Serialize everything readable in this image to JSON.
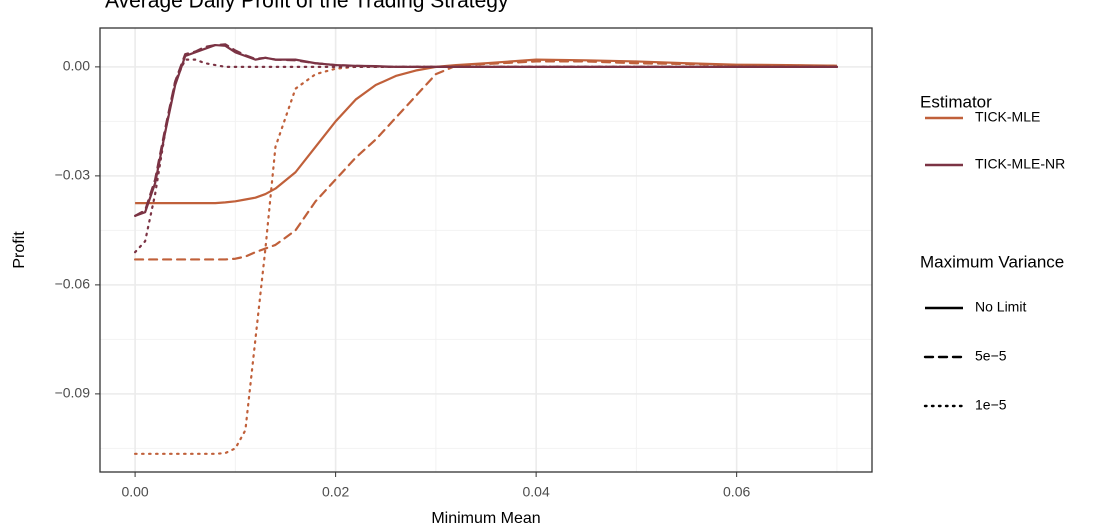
{
  "chart_data": {
    "type": "line",
    "title": "Average Daily Profit of the Trading Strategy",
    "x_label": "Minimum Mean",
    "y_label": "Profit",
    "xlim": [
      -0.0035,
      0.0735
    ],
    "ylim": [
      -0.1115,
      0.0107
    ],
    "xticks": [
      {
        "value": 0,
        "label": "0.00"
      },
      {
        "value": 0.02,
        "label": "0.02"
      },
      {
        "value": 0.04,
        "label": "0.04"
      },
      {
        "value": 0.06,
        "label": "0.06"
      }
    ],
    "yticks": [
      {
        "value": 0,
        "label": "0.00"
      },
      {
        "value": -0.03,
        "label": "−0.03"
      },
      {
        "value": -0.06,
        "label": "−0.06"
      },
      {
        "value": -0.09,
        "label": "−0.09"
      }
    ],
    "xminor": [
      0.01,
      0.03,
      0.05,
      0.07
    ],
    "yminor": [
      -0.015,
      -0.045,
      -0.075,
      -0.105
    ],
    "grid": true,
    "legend_position": "right",
    "color_legend_title": "Estimator",
    "estimators": [
      {
        "name": "TICK-MLE",
        "color": "#c0603a"
      },
      {
        "name": "TICK-MLE-NR",
        "color": "#7b3344"
      }
    ],
    "linetype_legend_title": "Maximum Variance",
    "variances": [
      {
        "name": "No Limit",
        "dash": "solid"
      },
      {
        "name": "5e−5",
        "dash": "dashed"
      },
      {
        "name": "1e−5",
        "dash": "dotted"
      }
    ],
    "x": [
      0,
      0.001,
      0.002,
      0.003,
      0.004,
      0.005,
      0.006,
      0.007,
      0.008,
      0.009,
      0.01,
      0.011,
      0.012,
      0.013,
      0.014,
      0.016,
      0.018,
      0.02,
      0.022,
      0.024,
      0.026,
      0.028,
      0.03,
      0.032,
      0.035,
      0.04,
      0.045,
      0.05,
      0.055,
      0.06,
      0.065,
      0.07
    ],
    "series": [
      {
        "name": "TICK-MLE",
        "estimator": 0,
        "variance": 0,
        "values": [
          -0.0375,
          -0.0375,
          -0.0375,
          -0.0375,
          -0.0375,
          -0.0375,
          -0.0375,
          -0.0375,
          -0.0375,
          -0.0373,
          -0.037,
          -0.0365,
          -0.036,
          -0.035,
          -0.0335,
          -0.029,
          -0.022,
          -0.015,
          -0.009,
          -0.005,
          -0.0025,
          -0.001,
          0,
          0.0005,
          0.001,
          0.002,
          0.0018,
          0.0015,
          0.001,
          0.0006,
          0.0005,
          0.0003
        ]
      },
      {
        "name": "TICK-MLE",
        "estimator": 0,
        "variance": 1,
        "values": [
          -0.053,
          -0.053,
          -0.053,
          -0.053,
          -0.053,
          -0.053,
          -0.053,
          -0.053,
          -0.053,
          -0.053,
          -0.0528,
          -0.0522,
          -0.051,
          -0.05,
          -0.049,
          -0.045,
          -0.037,
          -0.031,
          -0.025,
          -0.02,
          -0.014,
          -0.008,
          -0.002,
          0.0003,
          0.0008,
          0.0015,
          0.0015,
          0.001,
          0.0008,
          0.0005,
          0.0004,
          0.0003
        ]
      },
      {
        "name": "TICK-MLE",
        "estimator": 0,
        "variance": 2,
        "values": [
          -0.1065,
          -0.1065,
          -0.1065,
          -0.1065,
          -0.1065,
          -0.1065,
          -0.1065,
          -0.1065,
          -0.1065,
          -0.1063,
          -0.105,
          -0.1,
          -0.075,
          -0.05,
          -0.022,
          -0.006,
          -0.002,
          -0.0005,
          0,
          0,
          0,
          0,
          0,
          0,
          0,
          0,
          0,
          0,
          0,
          0,
          0,
          0
        ]
      },
      {
        "name": "TICK-MLE-NR",
        "estimator": 1,
        "variance": 0,
        "values": [
          -0.041,
          -0.04,
          -0.032,
          -0.018,
          -0.005,
          0.003,
          0.004,
          0.005,
          0.006,
          0.0058,
          0.004,
          0.003,
          0.002,
          0.0025,
          0.002,
          0.002,
          0.001,
          0.0005,
          0.0003,
          0.0002,
          0,
          0,
          0,
          0,
          0,
          0,
          0,
          0,
          0,
          0,
          0,
          0
        ]
      },
      {
        "name": "TICK-MLE-NR",
        "estimator": 1,
        "variance": 1,
        "values": [
          -0.041,
          -0.0395,
          -0.031,
          -0.017,
          -0.004,
          0.0035,
          0.0042,
          0.0055,
          0.006,
          0.0062,
          0.0045,
          0.0032,
          0.0022,
          0.0025,
          0.002,
          0.0018,
          0.001,
          0.0005,
          0.0003,
          0.0001,
          0,
          0,
          0,
          0,
          0,
          0,
          0,
          0,
          0,
          0,
          0,
          0
        ]
      },
      {
        "name": "TICK-MLE-NR",
        "estimator": 1,
        "variance": 2,
        "values": [
          -0.051,
          -0.048,
          -0.035,
          -0.018,
          -0.004,
          0.002,
          0.002,
          0.001,
          0.0005,
          0,
          0,
          0,
          0,
          0,
          0,
          0,
          0,
          0,
          0,
          0,
          0,
          0,
          0,
          0,
          0,
          0,
          0,
          0,
          0,
          0,
          0,
          0
        ]
      }
    ]
  }
}
